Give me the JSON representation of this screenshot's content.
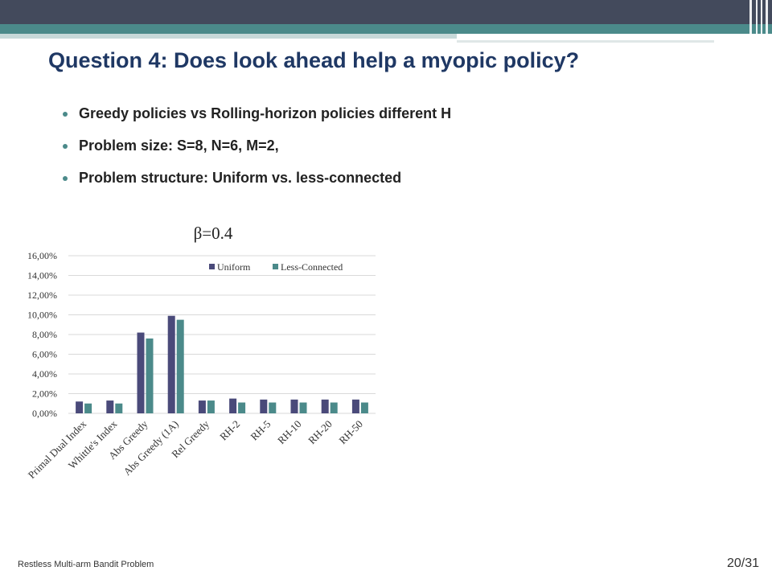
{
  "slide": {
    "title": "Question 4: Does look ahead help a myopic policy?",
    "bullets": [
      "Greedy policies vs Rolling-horizon policies different H",
      "Problem size: S=8, N=6, M=2,",
      "Problem structure: Uniform vs. less-connected"
    ],
    "footer_left": "Restless Multi-arm Bandit Problem",
    "page_number": "20/31"
  },
  "colors": {
    "title": "#1f3864",
    "bullet": "#4b8a8a",
    "uniform": "#4a4a7a",
    "less_connected": "#4b8a8a",
    "gridline": "#d9d9d9"
  },
  "chart_data": {
    "type": "bar",
    "title": "β=0.4",
    "categories": [
      "Primal Dual Index",
      "Whittle's Index",
      "Abs Greedy",
      "Abs Greedy (1A)",
      "Rel Greedy",
      "RH-2",
      "RH-5",
      "RH-10",
      "RH-20",
      "RH-50"
    ],
    "series": [
      {
        "name": "Uniform",
        "values": [
          1.2,
          1.3,
          8.2,
          9.9,
          1.3,
          1.5,
          1.4,
          1.4,
          1.4,
          1.4
        ]
      },
      {
        "name": "Less-Connected",
        "values": [
          1.0,
          1.0,
          7.6,
          9.5,
          1.3,
          1.1,
          1.1,
          1.1,
          1.1,
          1.1
        ]
      }
    ],
    "ylim": [
      0,
      16
    ],
    "yticks": [
      0,
      2,
      4,
      6,
      8,
      10,
      12,
      14,
      16
    ],
    "ytick_labels": [
      "0,00%",
      "2,00%",
      "4,00%",
      "6,00%",
      "8,00%",
      "10,00%",
      "12,00%",
      "14,00%",
      "16,00%"
    ],
    "grid": true,
    "legend_position": "top-right"
  }
}
